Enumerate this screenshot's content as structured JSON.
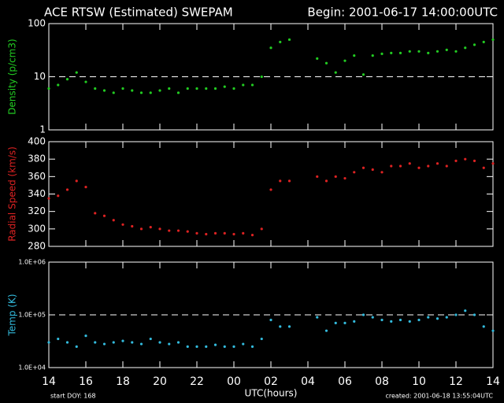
{
  "header": {
    "title": "ACE RTSW (Estimated) SWEPAM",
    "begin": "Begin: 2001-06-17 14:00:00UTC"
  },
  "footer": {
    "start": "start DOY: 168",
    "xlabel": "UTC(hours)",
    "created": "created: 2001-06-18 13:55:04UTC"
  },
  "chart_data": [
    {
      "type": "scatter",
      "ylabel": "Density (p/cm3)",
      "log_y": true,
      "reference_line": 10,
      "xlim": [
        0,
        24
      ],
      "xticks": [
        0,
        2,
        4,
        6,
        8,
        10,
        12,
        14,
        16,
        18,
        20,
        22,
        24
      ],
      "ylim": [
        1,
        100
      ],
      "yticks": [
        1,
        10,
        100
      ],
      "x": [
        0,
        0.5,
        1,
        1.5,
        2,
        2.5,
        3,
        3.5,
        4,
        4.5,
        5,
        5.5,
        6,
        6.5,
        7,
        7.5,
        8,
        8.5,
        9,
        9.5,
        10,
        10.5,
        11,
        11.5,
        12,
        12.5,
        13,
        13.5,
        14,
        14.5,
        15,
        15.5,
        16,
        16.5,
        17,
        17.5,
        18,
        18.5,
        19,
        19.5,
        20,
        20.5,
        21,
        21.5,
        22,
        22.5,
        23,
        23.5,
        24
      ],
      "series": [
        {
          "name": "Density",
          "color": "#22cc22",
          "values": [
            6,
            7,
            9,
            12,
            8,
            6,
            5.5,
            5,
            6,
            5.5,
            5,
            5,
            5.5,
            6,
            5,
            6,
            6,
            6,
            6,
            6.5,
            6,
            7,
            7,
            10,
            35,
            45,
            50,
            null,
            null,
            22,
            18,
            12,
            20,
            25,
            11,
            25,
            27,
            28,
            28,
            30,
            30,
            28,
            30,
            32,
            30,
            35,
            40,
            45,
            50
          ]
        }
      ]
    },
    {
      "type": "scatter",
      "ylabel": "Radial Speed (km/s)",
      "log_y": false,
      "xlim": [
        0,
        24
      ],
      "xticks": [
        0,
        2,
        4,
        6,
        8,
        10,
        12,
        14,
        16,
        18,
        20,
        22,
        24
      ],
      "ylim": [
        280,
        400
      ],
      "yticks": [
        280,
        300,
        320,
        340,
        360,
        380,
        400
      ],
      "x": [
        0,
        0.5,
        1,
        1.5,
        2,
        2.5,
        3,
        3.5,
        4,
        4.5,
        5,
        5.5,
        6,
        6.5,
        7,
        7.5,
        8,
        8.5,
        9,
        9.5,
        10,
        10.5,
        11,
        11.5,
        12,
        12.5,
        13,
        13.5,
        14,
        14.5,
        15,
        15.5,
        16,
        16.5,
        17,
        17.5,
        18,
        18.5,
        19,
        19.5,
        20,
        20.5,
        21,
        21.5,
        22,
        22.5,
        23,
        23.5,
        24
      ],
      "series": [
        {
          "name": "Radial Speed",
          "color": "#dd2222",
          "values": [
            335,
            338,
            345,
            355,
            348,
            318,
            315,
            310,
            305,
            303,
            300,
            302,
            300,
            298,
            298,
            297,
            295,
            294,
            295,
            295,
            294,
            295,
            293,
            300,
            345,
            355,
            355,
            null,
            null,
            360,
            355,
            360,
            358,
            365,
            370,
            368,
            365,
            372,
            372,
            375,
            370,
            372,
            375,
            372,
            378,
            380,
            378,
            370,
            375
          ]
        }
      ]
    },
    {
      "type": "scatter",
      "ylabel": "Temp (K)",
      "log_y": true,
      "reference_line": 100000,
      "xlim": [
        0,
        24
      ],
      "xticks": [
        {
          "value": 0,
          "label": "14"
        },
        {
          "value": 2,
          "label": "16"
        },
        {
          "value": 4,
          "label": "18"
        },
        {
          "value": 6,
          "label": "20"
        },
        {
          "value": 8,
          "label": "22"
        },
        {
          "value": 10,
          "label": "00"
        },
        {
          "value": 12,
          "label": "02"
        },
        {
          "value": 14,
          "label": "04"
        },
        {
          "value": 16,
          "label": "06"
        },
        {
          "value": 18,
          "label": "08"
        },
        {
          "value": 20,
          "label": "10"
        },
        {
          "value": 22,
          "label": "12"
        },
        {
          "value": 24,
          "label": "14"
        }
      ],
      "ylim": [
        10000,
        1000000
      ],
      "yticks": [
        {
          "value": 10000,
          "label": "1.0E+04"
        },
        {
          "value": 100000,
          "label": "1.0E+05"
        },
        {
          "value": 1000000,
          "label": "1.0E+06"
        }
      ],
      "x": [
        0,
        0.5,
        1,
        1.5,
        2,
        2.5,
        3,
        3.5,
        4,
        4.5,
        5,
        5.5,
        6,
        6.5,
        7,
        7.5,
        8,
        8.5,
        9,
        9.5,
        10,
        10.5,
        11,
        11.5,
        12,
        12.5,
        13,
        13.5,
        14,
        14.5,
        15,
        15.5,
        16,
        16.5,
        17,
        17.5,
        18,
        18.5,
        19,
        19.5,
        20,
        20.5,
        21,
        21.5,
        22,
        22.5,
        23,
        23.5,
        24
      ],
      "series": [
        {
          "name": "Temp",
          "color": "#33bbdd",
          "values": [
            30000,
            35000,
            30000,
            25000,
            40000,
            30000,
            28000,
            30000,
            32000,
            30000,
            28000,
            35000,
            30000,
            28000,
            30000,
            25000,
            25000,
            25000,
            27000,
            25000,
            25000,
            28000,
            25000,
            35000,
            80000,
            60000,
            60000,
            null,
            null,
            90000,
            50000,
            70000,
            70000,
            75000,
            100000,
            90000,
            80000,
            75000,
            80000,
            75000,
            80000,
            90000,
            85000,
            90000,
            100000,
            120000,
            100000,
            60000,
            50000
          ]
        }
      ]
    }
  ]
}
